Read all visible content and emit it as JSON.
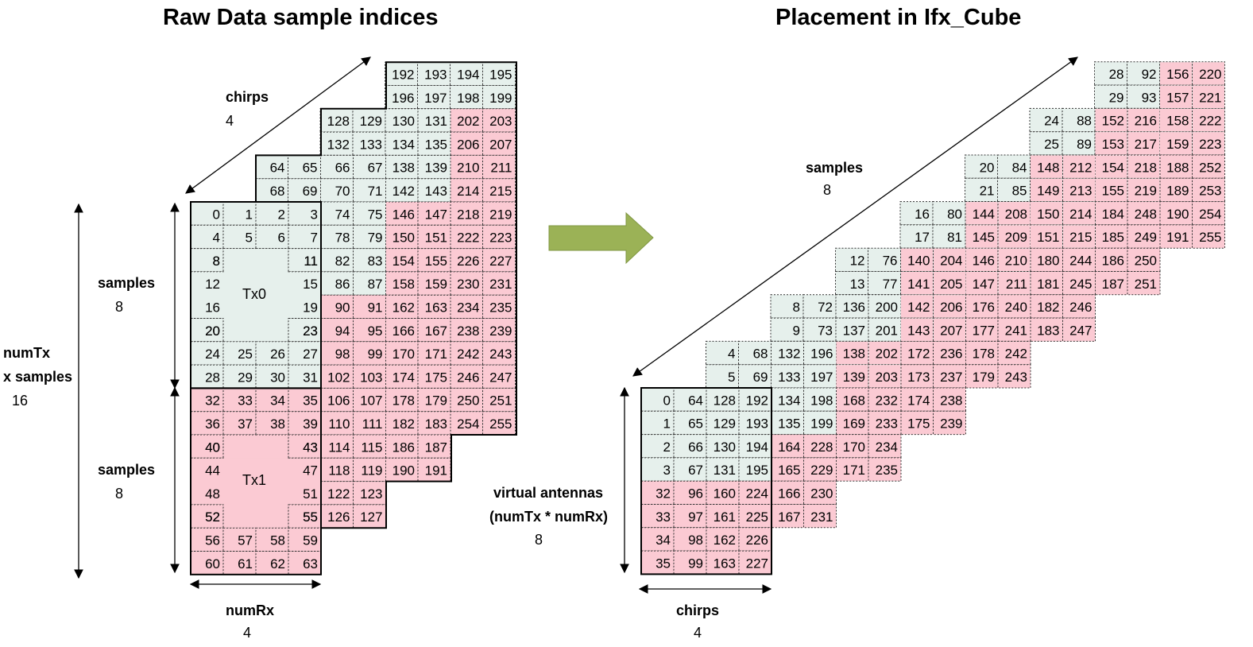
{
  "left": {
    "title": "Raw Data sample indices",
    "chirps_label": "chirps",
    "chirps_value": "4",
    "samples_label": "samples",
    "samples_value": "8",
    "samples2_label": "samples",
    "samples2_value": "8",
    "numtx_label_1": "numTx",
    "numtx_label_2": "x samples",
    "numtx_value": "16",
    "numrx_label": "numRx",
    "numrx_value": "4",
    "tx0": "Tx0",
    "tx1": "Tx1"
  },
  "right": {
    "title": "Placement in Ifx_Cube",
    "samples_label": "samples",
    "samples_value": "8",
    "va_label_1": "virtual antennas",
    "va_label_2": "(numTx * numRx)",
    "va_value": "8",
    "chirps_label": "chirps",
    "chirps_value": "4"
  },
  "colors": {
    "green": "#e6f0ec",
    "pink": "#fbcad3",
    "arrow": "#9bb256"
  }
}
